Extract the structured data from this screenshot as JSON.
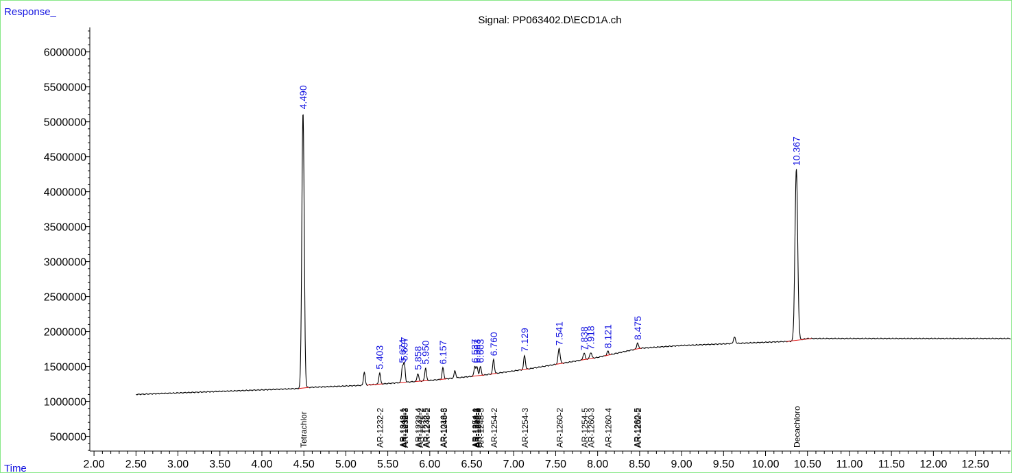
{
  "chart_data": {
    "type": "line",
    "title": "Signal: PP063402.D\\ECD1A.ch",
    "ylabel": "Response_",
    "xlabel": "Time",
    "xlim": [
      1.95,
      12.92
    ],
    "ylim": [
      290000,
      6350000
    ],
    "x_ticks": [
      "2.00",
      "2.50",
      "3.00",
      "3.50",
      "4.00",
      "4.50",
      "5.00",
      "5.50",
      "6.00",
      "6.50",
      "7.00",
      "7.50",
      "8.00",
      "8.50",
      "9.00",
      "9.50",
      "10.00",
      "10.50",
      "11.00",
      "11.50",
      "12.00",
      "12.50"
    ],
    "y_ticks": [
      "500000",
      "1000000",
      "1500000",
      "2000000",
      "2500000",
      "3000000",
      "3500000",
      "4000000",
      "4500000",
      "5000000",
      "5500000",
      "6000000"
    ],
    "colors": {
      "trace": "#000000",
      "baseline": "#e01010",
      "retention_label": "#1414e0",
      "axis_label": "#1414e0"
    },
    "baseline_points": [
      [
        2.5,
        1100000
      ],
      [
        4.45,
        1185000
      ],
      [
        4.55,
        1200000
      ],
      [
        5.2,
        1230000
      ],
      [
        6.0,
        1300000
      ],
      [
        6.6,
        1370000
      ],
      [
        7.2,
        1470000
      ],
      [
        7.6,
        1550000
      ],
      [
        8.0,
        1630000
      ],
      [
        8.5,
        1760000
      ],
      [
        9.0,
        1800000
      ],
      [
        10.3,
        1860000
      ],
      [
        10.5,
        1900000
      ],
      [
        12.92,
        1900000
      ]
    ],
    "peaks": [
      {
        "rt": 4.49,
        "height": 5140000,
        "width": 0.014
      },
      {
        "rt": 5.22,
        "height": 1420000,
        "width": 0.01
      },
      {
        "rt": 5.403,
        "height": 1410000,
        "width": 0.01
      },
      {
        "rt": 5.674,
        "height": 1500000,
        "width": 0.01
      },
      {
        "rt": 5.697,
        "height": 1540000,
        "width": 0.01
      },
      {
        "rt": 5.858,
        "height": 1400000,
        "width": 0.01
      },
      {
        "rt": 5.95,
        "height": 1480000,
        "width": 0.01
      },
      {
        "rt": 6.157,
        "height": 1480000,
        "width": 0.01
      },
      {
        "rt": 6.3,
        "height": 1440000,
        "width": 0.01
      },
      {
        "rt": 6.537,
        "height": 1500000,
        "width": 0.01
      },
      {
        "rt": 6.563,
        "height": 1490000,
        "width": 0.01
      },
      {
        "rt": 6.603,
        "height": 1500000,
        "width": 0.01
      },
      {
        "rt": 6.76,
        "height": 1600000,
        "width": 0.01
      },
      {
        "rt": 7.129,
        "height": 1660000,
        "width": 0.01
      },
      {
        "rt": 7.541,
        "height": 1760000,
        "width": 0.012
      },
      {
        "rt": 7.838,
        "height": 1690000,
        "width": 0.012
      },
      {
        "rt": 7.918,
        "height": 1700000,
        "width": 0.012
      },
      {
        "rt": 8.121,
        "height": 1720000,
        "width": 0.01
      },
      {
        "rt": 8.475,
        "height": 1840000,
        "width": 0.01
      },
      {
        "rt": 9.63,
        "height": 1920000,
        "width": 0.012
      },
      {
        "rt": 10.367,
        "height": 4320000,
        "width": 0.016
      }
    ],
    "retention_labels": [
      {
        "x": 4.49,
        "y": 5140000,
        "text": "4.490"
      },
      {
        "x": 5.403,
        "y": 1420000,
        "text": "5.403"
      },
      {
        "x": 5.674,
        "y": 1510000,
        "text": "5.674"
      },
      {
        "x": 5.697,
        "y": 1540000,
        "text": "5.697"
      },
      {
        "x": 5.858,
        "y": 1410000,
        "text": "5.858"
      },
      {
        "x": 5.95,
        "y": 1490000,
        "text": "5.950"
      },
      {
        "x": 6.157,
        "y": 1490000,
        "text": "6.157"
      },
      {
        "x": 6.537,
        "y": 1510000,
        "text": "6.537"
      },
      {
        "x": 6.563,
        "y": 1510000,
        "text": "6.563"
      },
      {
        "x": 6.603,
        "y": 1510000,
        "text": "6.603"
      },
      {
        "x": 6.76,
        "y": 1610000,
        "text": "6.760"
      },
      {
        "x": 7.129,
        "y": 1670000,
        "text": "7.129"
      },
      {
        "x": 7.541,
        "y": 1760000,
        "text": "7.541"
      },
      {
        "x": 7.838,
        "y": 1690000,
        "text": "7.838"
      },
      {
        "x": 7.918,
        "y": 1700000,
        "text": "7.918"
      },
      {
        "x": 8.121,
        "y": 1720000,
        "text": "8.121"
      },
      {
        "x": 8.475,
        "y": 1840000,
        "text": "8.475"
      },
      {
        "x": 10.367,
        "y": 4330000,
        "text": "10.367"
      }
    ],
    "compound_labels": [
      {
        "x": 4.49,
        "text": "Tetrachlor"
      },
      {
        "x": 5.403,
        "text": "AR-1232-2"
      },
      {
        "x": 5.674,
        "text": "AR-1248-1"
      },
      {
        "x": 5.68,
        "text": "AR-1242-1"
      },
      {
        "x": 5.697,
        "text": "AR-1016-2"
      },
      {
        "x": 5.7,
        "text": "AR-1232-3"
      },
      {
        "x": 5.858,
        "text": "AR-1232-4"
      },
      {
        "x": 5.88,
        "text": "AR-1242-2"
      },
      {
        "x": 5.95,
        "text": "AR-1232-5"
      },
      {
        "x": 5.96,
        "text": "AR-1248-2"
      },
      {
        "x": 6.157,
        "text": "AR-1016-3"
      },
      {
        "x": 6.165,
        "text": "AR-1248-5"
      },
      {
        "x": 6.537,
        "text": "AR-1254-1"
      },
      {
        "x": 6.545,
        "text": "AR-1248-3"
      },
      {
        "x": 6.563,
        "text": "AR-1242-5"
      },
      {
        "x": 6.57,
        "text": "AR-1248-4"
      },
      {
        "x": 6.603,
        "text": "AR-1248-5"
      },
      {
        "x": 6.76,
        "text": "AR-1254-2"
      },
      {
        "x": 7.129,
        "text": "AR-1254-3"
      },
      {
        "x": 7.541,
        "text": "AR-1260-2"
      },
      {
        "x": 7.838,
        "text": "AR-1254-5"
      },
      {
        "x": 7.918,
        "text": "AR-1260-3"
      },
      {
        "x": 8.121,
        "text": "AR-1260-4"
      },
      {
        "x": 8.465,
        "text": "AR-1260-5"
      },
      {
        "x": 8.475,
        "text": "AR-1262-2"
      },
      {
        "x": 10.367,
        "text": "Decachloro"
      }
    ],
    "grid": false
  }
}
